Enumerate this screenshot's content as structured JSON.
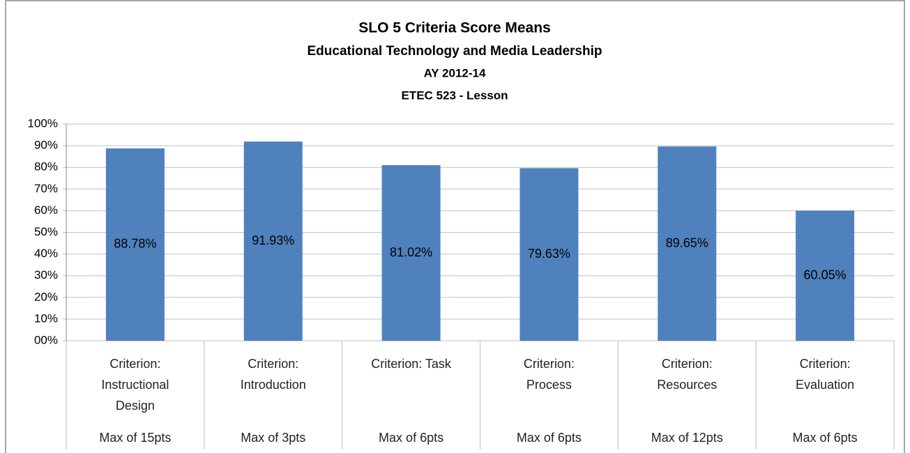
{
  "chart_data": {
    "type": "bar",
    "title": "SLO 5 Criteria Score Means",
    "subtitle": [
      "Educational Technology and Media Leadership",
      "AY 2012-14",
      "ETEC 523 - Lesson"
    ],
    "categories": [
      "Criterion: Instructional Design",
      "Criterion: Introduction",
      "Criterion: Task",
      "Criterion: Process",
      "Criterion: Resources",
      "Criterion: Evaluation"
    ],
    "category_groups": [
      "Max of 15pts",
      "Max of 3pts",
      "Max of 6pts",
      "Max of 6pts",
      "Max of 12pts",
      "Max of 6pts"
    ],
    "values": [
      88.78,
      91.93,
      81.02,
      79.63,
      89.65,
      60.05
    ],
    "value_labels": [
      "88.78%",
      "91.93%",
      "81.02%",
      "79.63%",
      "89.65%",
      "60.05%"
    ],
    "color": "#4f81bd",
    "ylim": [
      0,
      100
    ],
    "yticks": [
      {
        "value": 0,
        "label": "00%"
      },
      {
        "value": 10,
        "label": "10%"
      },
      {
        "value": 20,
        "label": "20%"
      },
      {
        "value": 30,
        "label": "30%"
      },
      {
        "value": 40,
        "label": "40%"
      },
      {
        "value": 50,
        "label": "50%"
      },
      {
        "value": 60,
        "label": "60%"
      },
      {
        "value": 70,
        "label": "70%"
      },
      {
        "value": 80,
        "label": "80%"
      },
      {
        "value": 90,
        "label": "90%"
      },
      {
        "value": 100,
        "label": "100%"
      }
    ],
    "grid": true
  }
}
